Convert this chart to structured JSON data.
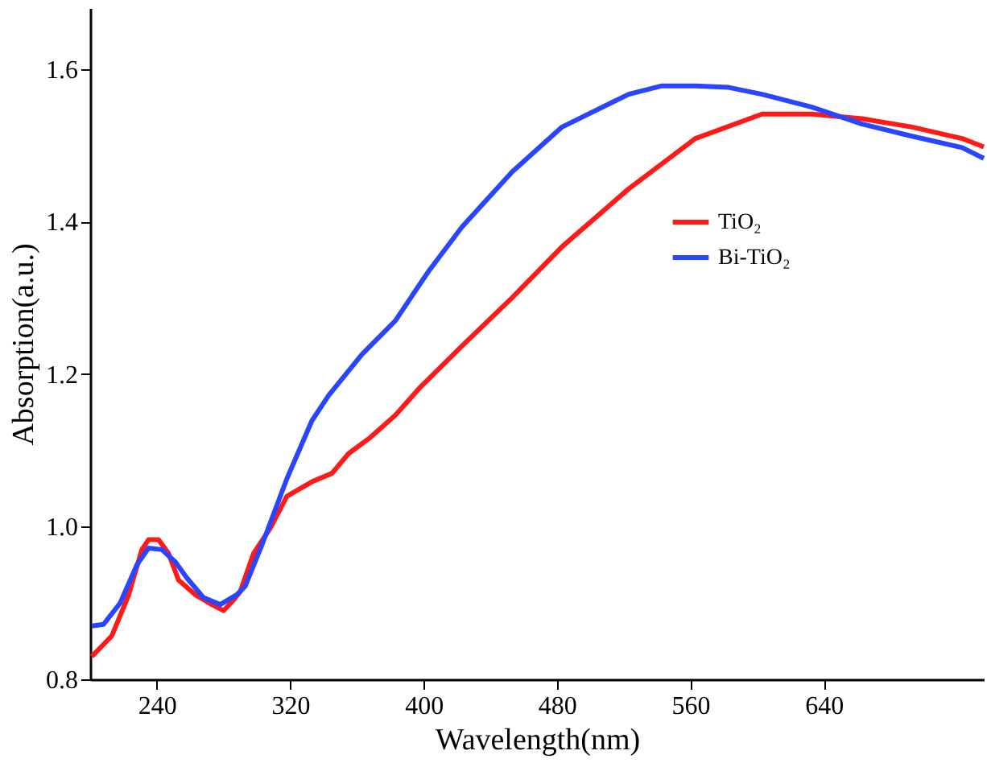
{
  "chart_data": {
    "type": "line",
    "xlabel": "Wavelength(nm)",
    "ylabel": "Absorption(a.u.)",
    "xlim": [
      200,
      736
    ],
    "xticks": [
      240,
      320,
      400,
      480,
      560,
      640
    ],
    "ylim": [
      0.8,
      1.68
    ],
    "yticks": [
      0.8,
      {
        "value": 1,
        "label": "1.0"
      },
      1.2,
      1.4,
      1.6
    ],
    "grid": false,
    "legend": "top right",
    "line_style": "solid",
    "marker": "none",
    "series": [
      {
        "name": "TiO₂",
        "color": "#ff1a1a",
        "x": [
          201,
          213,
          223,
          231,
          235,
          241,
          247,
          253,
          263,
          273,
          280,
          286,
          290,
          298,
          308,
          318,
          333,
          345,
          355,
          368,
          383,
          398,
          423,
          453,
          483,
          523,
          563,
          603,
          633,
          663,
          693,
          723,
          736
        ],
        "values": [
          0.83,
          0.857,
          0.91,
          0.97,
          0.983,
          0.983,
          0.965,
          0.93,
          0.911,
          0.898,
          0.89,
          0.904,
          0.915,
          0.965,
          0.998,
          1.04,
          1.059,
          1.07,
          1.096,
          1.117,
          1.146,
          1.183,
          1.237,
          1.3,
          1.367,
          1.443,
          1.509,
          1.541,
          1.541,
          1.535,
          1.524,
          1.509,
          1.498
        ]
      },
      {
        "name": "Bi-TiO₂",
        "color": "#2a45ff",
        "x": [
          201,
          208,
          218,
          228,
          235,
          243,
          251,
          258,
          268,
          278,
          288,
          293,
          303,
          318,
          333,
          343,
          363,
          383,
          403,
          423,
          453,
          483,
          523,
          543,
          563,
          583,
          603,
          633,
          663,
          693,
          723,
          736
        ],
        "values": [
          0.87,
          0.872,
          0.9,
          0.95,
          0.972,
          0.97,
          0.954,
          0.933,
          0.907,
          0.898,
          0.911,
          0.922,
          0.976,
          1.063,
          1.139,
          1.172,
          1.226,
          1.27,
          1.335,
          1.393,
          1.465,
          1.524,
          1.567,
          1.578,
          1.578,
          1.576,
          1.567,
          1.55,
          1.528,
          1.512,
          1.497,
          1.483
        ]
      }
    ]
  }
}
